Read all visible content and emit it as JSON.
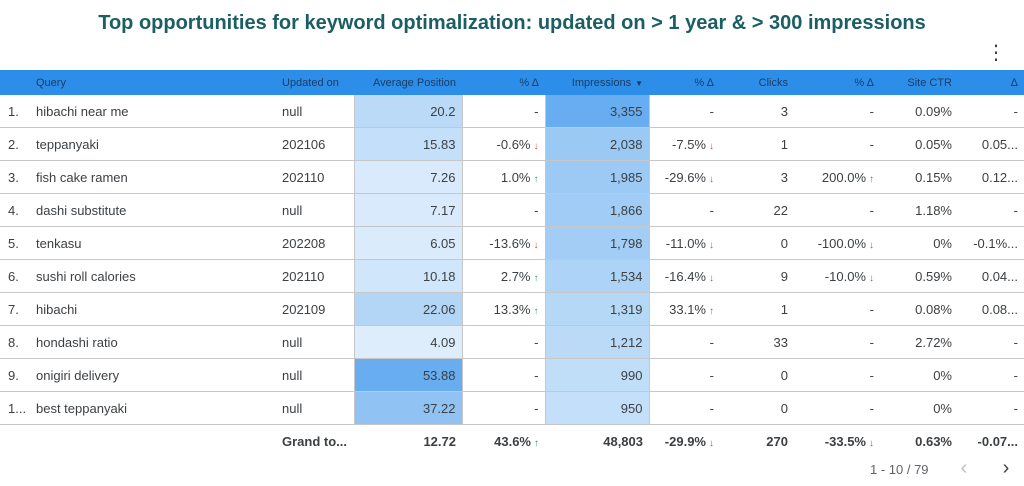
{
  "title": "Top opportunities for keyword optimalization: updated on > 1 year & > 300 impressions",
  "menu_icon": "more-vert-icon",
  "header": {
    "query": "Query",
    "updated_on": "Updated on",
    "avg_position": "Average Position",
    "avg_position_delta": "% Δ",
    "impressions": "Impressions",
    "impressions_sort": "▼",
    "impressions_delta": "% Δ",
    "clicks": "Clicks",
    "clicks_delta": "% Δ",
    "ctr": "Site CTR",
    "ctr_delta": "Δ"
  },
  "colors": {
    "header_bg": "#2c8ee8",
    "title": "#1b5e63",
    "up": "#2e9e5b",
    "down": "#e0453a"
  },
  "rows": [
    {
      "idx": "1.",
      "query": "hibachi near me",
      "updated": "null",
      "pos": "20.2",
      "pos_d": "-",
      "pos_dir": "",
      "pos_shade": 0.36,
      "impr": "3,355",
      "impr_shade": 1.0,
      "impr_d": "-",
      "impr_dir": "",
      "clicks": "3",
      "clicks_d": "-",
      "clicks_dir": "",
      "ctr": "0.09%",
      "ctr_d": "-"
    },
    {
      "idx": "2.",
      "query": "teppanyaki",
      "updated": "202106",
      "pos": "15.83",
      "pos_d": "-0.6%",
      "pos_dir": "down",
      "pos_shade": 0.28,
      "impr": "2,038",
      "impr_shade": 0.61,
      "impr_d": "-7.5%",
      "impr_dir": "down",
      "clicks": "1",
      "clicks_d": "-",
      "clicks_dir": "",
      "ctr": "0.05%",
      "ctr_d": "0.05..."
    },
    {
      "idx": "3.",
      "query": "fish cake ramen",
      "updated": "202110",
      "pos": "7.26",
      "pos_d": "1.0%",
      "pos_dir": "up",
      "pos_shade": 0.13,
      "impr": "1,985",
      "impr_shade": 0.59,
      "impr_d": "-29.6%",
      "impr_dir": "down",
      "clicks": "3",
      "clicks_d": "200.0%",
      "clicks_dir": "up",
      "ctr": "0.15%",
      "ctr_d": "0.12..."
    },
    {
      "idx": "4.",
      "query": "dashi substitute",
      "updated": "null",
      "pos": "7.17",
      "pos_d": "-",
      "pos_dir": "",
      "pos_shade": 0.13,
      "impr": "1,866",
      "impr_shade": 0.56,
      "impr_d": "-",
      "impr_dir": "",
      "clicks": "22",
      "clicks_d": "-",
      "clicks_dir": "",
      "ctr": "1.18%",
      "ctr_d": "-"
    },
    {
      "idx": "5.",
      "query": "tenkasu",
      "updated": "202208",
      "pos": "6.05",
      "pos_d": "-13.6%",
      "pos_dir": "down",
      "pos_shade": 0.11,
      "impr": "1,798",
      "impr_shade": 0.54,
      "impr_d": "-11.0%",
      "impr_dir": "down",
      "clicks": "0",
      "clicks_d": "-100.0%",
      "clicks_dir": "down",
      "ctr": "0%",
      "ctr_d": "-0.1%..."
    },
    {
      "idx": "6.",
      "query": "sushi roll calories",
      "updated": "202110",
      "pos": "10.18",
      "pos_d": "2.7%",
      "pos_dir": "up",
      "pos_shade": 0.19,
      "impr": "1,534",
      "impr_shade": 0.46,
      "impr_d": "-16.4%",
      "impr_dir": "down",
      "clicks": "9",
      "clicks_d": "-10.0%",
      "clicks_dir": "down",
      "ctr": "0.59%",
      "ctr_d": "0.04..."
    },
    {
      "idx": "7.",
      "query": "hibachi",
      "updated": "202109",
      "pos": "22.06",
      "pos_d": "13.3%",
      "pos_dir": "up",
      "pos_shade": 0.41,
      "impr": "1,319",
      "impr_shade": 0.39,
      "impr_d": "33.1%",
      "impr_dir": "up",
      "clicks": "1",
      "clicks_d": "-",
      "clicks_dir": "",
      "ctr": "0.08%",
      "ctr_d": "0.08..."
    },
    {
      "idx": "8.",
      "query": "hondashi ratio",
      "updated": "null",
      "pos": "4.09",
      "pos_d": "-",
      "pos_dir": "",
      "pos_shade": 0.08,
      "impr": "1,212",
      "impr_shade": 0.36,
      "impr_d": "-",
      "impr_dir": "",
      "clicks": "33",
      "clicks_d": "-",
      "clicks_dir": "",
      "ctr": "2.72%",
      "ctr_d": "-"
    },
    {
      "idx": "9.",
      "query": "onigiri delivery",
      "updated": "null",
      "pos": "53.88",
      "pos_d": "-",
      "pos_dir": "",
      "pos_shade": 1.0,
      "impr": "990",
      "impr_shade": 0.3,
      "impr_d": "-",
      "impr_dir": "",
      "clicks": "0",
      "clicks_d": "-",
      "clicks_dir": "",
      "ctr": "0%",
      "ctr_d": "-"
    },
    {
      "idx": "1...",
      "query": "best teppanyaki",
      "updated": "null",
      "pos": "37.22",
      "pos_d": "-",
      "pos_dir": "",
      "pos_shade": 0.69,
      "impr": "950",
      "impr_shade": 0.28,
      "impr_d": "-",
      "impr_dir": "",
      "clicks": "0",
      "clicks_d": "-",
      "clicks_dir": "",
      "ctr": "0%",
      "ctr_d": "-"
    }
  ],
  "total": {
    "label": "Grand to...",
    "pos": "12.72",
    "pos_d": "43.6%",
    "pos_dir": "up",
    "impr": "48,803",
    "impr_d": "-29.9%",
    "impr_dir": "down",
    "clicks": "270",
    "clicks_d": "-33.5%",
    "clicks_dir": "down",
    "ctr": "0.63%",
    "ctr_d": "-0.07..."
  },
  "pagination": {
    "label": "1 - 10 / 79",
    "prev_icon": "chevron-left-icon",
    "next_icon": "chevron-right-icon"
  }
}
